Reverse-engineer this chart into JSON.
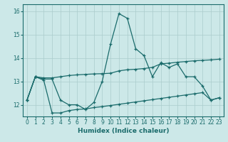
{
  "xlabel": "Humidex (Indice chaleur)",
  "xlim": [
    -0.5,
    23.5
  ],
  "ylim": [
    11.5,
    16.3
  ],
  "yticks": [
    12,
    13,
    14,
    15,
    16
  ],
  "xticks": [
    0,
    1,
    2,
    3,
    4,
    5,
    6,
    7,
    8,
    9,
    10,
    11,
    12,
    13,
    14,
    15,
    16,
    17,
    18,
    19,
    20,
    21,
    22,
    23
  ],
  "background_color": "#cce8e8",
  "grid_color": "#aacccc",
  "line_color": "#1a6b6b",
  "line1_y": [
    12.2,
    13.2,
    13.1,
    13.1,
    12.2,
    12.0,
    12.0,
    11.8,
    12.1,
    13.0,
    14.6,
    15.9,
    15.7,
    14.4,
    14.1,
    13.2,
    13.8,
    13.6,
    13.75,
    13.2,
    13.2,
    12.8,
    12.2,
    12.3
  ],
  "line2_y": [
    12.2,
    13.2,
    13.15,
    13.15,
    13.2,
    13.25,
    13.28,
    13.3,
    13.32,
    13.33,
    13.35,
    13.45,
    13.5,
    13.52,
    13.55,
    13.6,
    13.75,
    13.78,
    13.82,
    13.85,
    13.88,
    13.9,
    13.92,
    13.95
  ],
  "line3_y": [
    12.2,
    13.2,
    13.05,
    11.65,
    11.65,
    11.75,
    11.8,
    11.82,
    11.88,
    11.92,
    11.97,
    12.02,
    12.07,
    12.12,
    12.17,
    12.22,
    12.27,
    12.32,
    12.37,
    12.42,
    12.47,
    12.52,
    12.2,
    12.3
  ]
}
